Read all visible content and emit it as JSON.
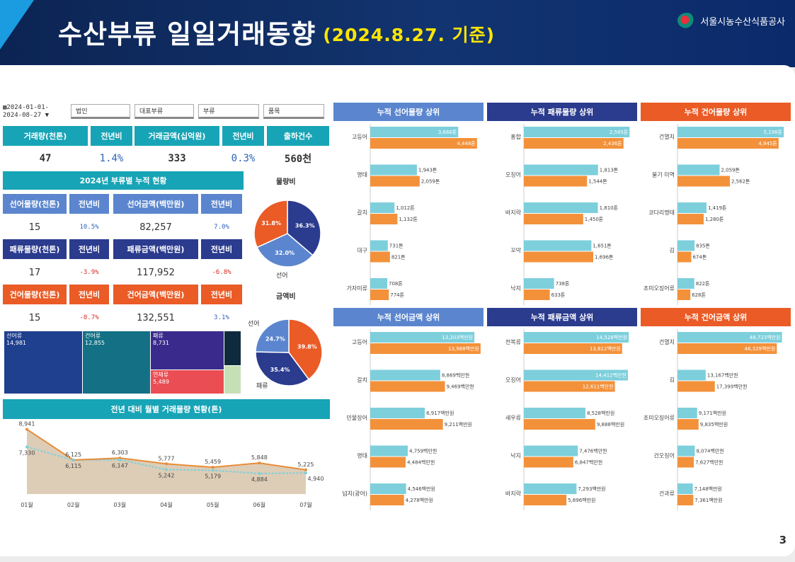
{
  "header": {
    "title": "수산부류 일일거래동향",
    "subtitle": "(2024.8.27. 기준)",
    "org": "서울시농수산식품공사"
  },
  "page_number": "3",
  "filters": {
    "date_start": "2024-01-01-",
    "date_end": "2024-08-27",
    "fields": [
      "법인",
      "대표부류",
      "부류",
      "품목"
    ]
  },
  "kpi": {
    "headers": [
      "거래량(천톤)",
      "전년비",
      "거래금액(십억원)",
      "전년비",
      "출하건수"
    ],
    "values": [
      "47",
      "1.4%",
      "333",
      "0.3%",
      "560천"
    ]
  },
  "cumulative": {
    "title": "2024년 부류별 누적 현황",
    "rows": [
      {
        "headers": [
          "선어물량(천톤)",
          "전년비",
          "선어금액(백만원)",
          "전년비"
        ],
        "values": [
          "15",
          "10.5%",
          "82,257",
          "7.0%"
        ],
        "signs": [
          "",
          "pos",
          "",
          "pos"
        ]
      },
      {
        "headers": [
          "패류물량(천톤)",
          "전년비",
          "패류금액(백만원)",
          "전년비"
        ],
        "values": [
          "17",
          "-3.9%",
          "117,952",
          "-6.8%"
        ],
        "signs": [
          "",
          "neg",
          "",
          "neg"
        ]
      },
      {
        "headers": [
          "건어물량(천톤)",
          "전년비",
          "건어금액(백만원)",
          "전년비"
        ],
        "values": [
          "15",
          "-0.7%",
          "132,551",
          "3.1%"
        ],
        "signs": [
          "",
          "neg",
          "",
          "pos"
        ]
      }
    ]
  },
  "pies": [
    {
      "title": "물량비",
      "slices": [
        {
          "value": 36.3,
          "label": "36.3%",
          "color": "#2b3b8e"
        },
        {
          "value": 32.0,
          "label": "32.0%",
          "color": "#5b86cf"
        },
        {
          "value": 31.8,
          "label": "31.8%",
          "color": "#ea5b26"
        }
      ],
      "outside_label": "선어"
    },
    {
      "title": "금액비",
      "slices": [
        {
          "value": 39.8,
          "label": "39.8%",
          "color": "#ea5b26"
        },
        {
          "value": 35.4,
          "label": "35.4%",
          "color": "#2b3b8e"
        },
        {
          "value": 24.7,
          "label": "24.7%",
          "color": "#5b86cf"
        }
      ],
      "outside_labels": [
        "선어",
        "패류"
      ]
    }
  ],
  "treemap": [
    {
      "name": "선어류",
      "value": "14,981",
      "color": "#1f3f8f"
    },
    {
      "name": "건어류",
      "value": "12,855",
      "color": "#137085"
    },
    {
      "name": "패류",
      "value": "8,731",
      "color": "#3a2a8c"
    },
    {
      "name": "연체류",
      "value": "5,489",
      "color": "#ea4d53"
    },
    {
      "name": "",
      "value": "",
      "color": "#0e2b3d"
    },
    {
      "name": "",
      "value": "",
      "color": "#c6e0b5"
    }
  ],
  "line_chart": {
    "title": "전년 대비 월별 거래물량 현황(톤)",
    "chart_data": {
      "type": "area",
      "categories": [
        "01월",
        "02월",
        "03월",
        "04월",
        "05월",
        "06월",
        "07월"
      ],
      "series": [
        {
          "values": [
            8941,
            6125,
            6303,
            5777,
            5459,
            5848,
            5225
          ],
          "color": "#e88c38"
        },
        {
          "values": [
            7330,
            6115,
            6147,
            5242,
            5179,
            4884,
            4940
          ],
          "color": "#7ecfdc"
        }
      ],
      "ylim": [
        3000,
        9500
      ]
    }
  },
  "bar_panels": [
    {
      "title": "누적 선어물량 상위",
      "color": "#5b86cf",
      "items": [
        {
          "name": "고등어",
          "a": 3666,
          "al": "3,666톤",
          "b": 4448,
          "bl": "4,448톤"
        },
        {
          "name": "명태",
          "a": 1943,
          "al": "1,943톤",
          "b": 2059,
          "bl": "2,059톤"
        },
        {
          "name": "갈치",
          "a": 1012,
          "al": "1,012톤",
          "b": 1132,
          "bl": "1,132톤"
        },
        {
          "name": "대구",
          "a": 731,
          "al": "731톤",
          "b": 821,
          "bl": "821톤"
        },
        {
          "name": "가자미류",
          "a": 708,
          "al": "708톤",
          "b": 774,
          "bl": "774톤"
        }
      ],
      "max": 4600
    },
    {
      "title": "누적 패류물량 상위",
      "color": "#2b3b8e",
      "items": [
        {
          "name": "홍합",
          "a": 2585,
          "al": "2,585톤",
          "b": 2436,
          "bl": "2,436톤"
        },
        {
          "name": "오징어",
          "a": 1813,
          "al": "1,813톤",
          "b": 1544,
          "bl": "1,544톤"
        },
        {
          "name": "바지락",
          "a": 1810,
          "al": "1,810톤",
          "b": 1450,
          "bl": "1,450톤"
        },
        {
          "name": "꼬막",
          "a": 1651,
          "al": "1,651톤",
          "b": 1696,
          "bl": "1,696톤"
        },
        {
          "name": "낙지",
          "a": 738,
          "al": "738톤",
          "b": 633,
          "bl": "633톤"
        }
      ],
      "max": 2700
    },
    {
      "title": "누적 건어물량 상위",
      "color": "#ea5b26",
      "items": [
        {
          "name": "건멸치",
          "a": 5198,
          "al": "5,198톤",
          "b": 4945,
          "bl": "4,945톤"
        },
        {
          "name": "물기 미역",
          "a": 2059,
          "al": "2,059톤",
          "b": 2562,
          "bl": "2,562톤"
        },
        {
          "name": "코다리명태",
          "a": 1419,
          "al": "1,419톤",
          "b": 1280,
          "bl": "1,280톤"
        },
        {
          "name": "김",
          "a": 835,
          "al": "835톤",
          "b": 674,
          "bl": "674톤"
        },
        {
          "name": "조미오징어류",
          "a": 822,
          "al": "822톤",
          "b": 628,
          "bl": "628톤"
        }
      ],
      "max": 5400
    },
    {
      "title": "누적 선어금액 상위",
      "color": "#5b86cf",
      "items": [
        {
          "name": "고등어",
          "a": 13203,
          "al": "13,203백만원",
          "b": 13988,
          "bl": "13,988백만원"
        },
        {
          "name": "갈치",
          "a": 8869,
          "al": "8,869백만원",
          "b": 9469,
          "bl": "9,469백만원"
        },
        {
          "name": "민물장어",
          "a": 6917,
          "al": "6,917백만원",
          "b": 9211,
          "bl": "9,211백만원"
        },
        {
          "name": "명태",
          "a": 4759,
          "al": "4,759백만원",
          "b": 4484,
          "bl": "4,484백만원"
        },
        {
          "name": "넙치(광어)",
          "a": 4546,
          "al": "4,546백만원",
          "b": 4278,
          "bl": "4,278백만원"
        }
      ],
      "max": 14000
    },
    {
      "title": "누적 패류금액 상위",
      "color": "#2b3b8e",
      "items": [
        {
          "name": "전복류",
          "a": 14528,
          "al": "14,528백만원",
          "b": 13612,
          "bl": "13,612백만원"
        },
        {
          "name": "오징어",
          "a": 14412,
          "al": "14,412백만원",
          "b": 12611,
          "bl": "12,611백만원"
        },
        {
          "name": "새우류",
          "a": 8528,
          "al": "8,528백만원",
          "b": 9888,
          "bl": "9,888백만원"
        },
        {
          "name": "낙지",
          "a": 7476,
          "al": "7,476백만원",
          "b": 6847,
          "bl": "6,847백만원"
        },
        {
          "name": "바지락",
          "a": 7293,
          "al": "7,293백만원",
          "b": 5896,
          "bl": "5,896백만원"
        }
      ],
      "max": 15300
    },
    {
      "title": "누적 건어금액 상위",
      "color": "#ea5b26",
      "items": [
        {
          "name": "건멸치",
          "a": 48723,
          "al": "48,723백만원",
          "b": 46329,
          "bl": "46,329백만원"
        },
        {
          "name": "김",
          "a": 13167,
          "al": "13,167백만원",
          "b": 17399,
          "bl": "17,399백만원"
        },
        {
          "name": "조미오징어류",
          "a": 9171,
          "al": "9,171백만원",
          "b": 9835,
          "bl": "9,835백만원"
        },
        {
          "name": "건오징어",
          "a": 8074,
          "al": "8,074백만원",
          "b": 7627,
          "bl": "7,627백만원"
        },
        {
          "name": "건과류",
          "a": 7148,
          "al": "7,148백만원",
          "b": 7361,
          "bl": "7,361백만원"
        }
      ],
      "max": 51500
    }
  ]
}
